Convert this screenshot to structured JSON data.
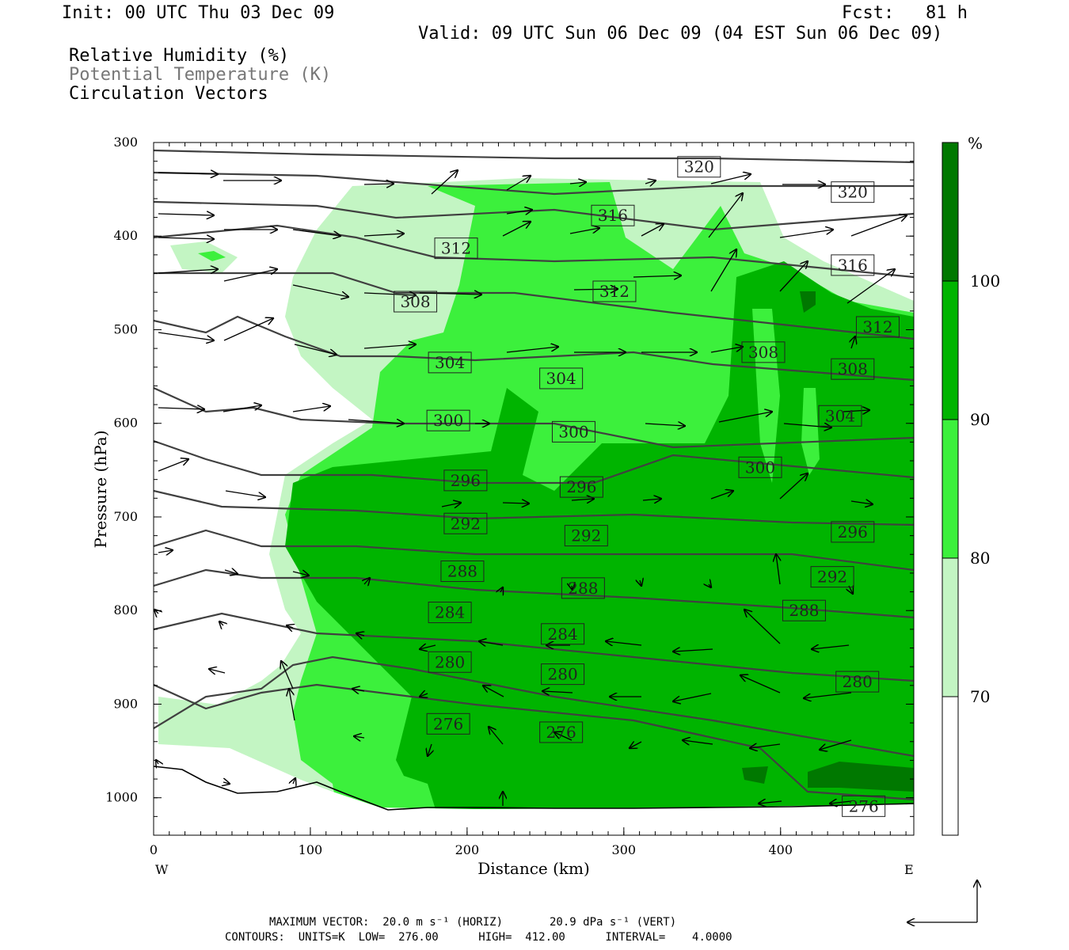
{
  "header": {
    "init": "Init: 00 UTC Thu 03 Dec 09",
    "fcst": "Fcst:   81 h",
    "valid": "Valid: 09 UTC Sun 06 Dec 09 (04 EST Sun 06 Dec 09)",
    "fields": [
      {
        "label": "Relative Humidity (%)",
        "color": "#000000"
      },
      {
        "label": "Potential Temperature (K)",
        "color": "#777777"
      },
      {
        "label": "Circulation Vectors",
        "color": "#000000"
      }
    ]
  },
  "footer": {
    "max_vector_line": "MAXIMUM VECTOR:  20.0 m s⁻¹ (HORIZ)       20.9 dPa s⁻¹ (VERT)",
    "contours_line": "CONTOURS:  UNITS=K  LOW=  276.00      HIGH=  412.00      INTERVAL=    4.0000"
  },
  "colors": {
    "rh_70_80": "#c3f5c3",
    "rh_80_90": "#3cf03c",
    "rh_90_100": "#00b400",
    "rh_100": "#007800",
    "theta_line": "#404040",
    "terrain": "#000000"
  },
  "chart_data": {
    "type": "cross-section",
    "xlabel": "Distance (km)",
    "ylabel": "Pressure (hPa)",
    "xlim": [
      0,
      485
    ],
    "ylim": [
      1040,
      300
    ],
    "x_ticks": [
      0,
      100,
      200,
      300,
      400
    ],
    "y_ticks": [
      300,
      400,
      500,
      600,
      700,
      800,
      900,
      1000
    ],
    "x_end_labels": {
      "west": "W",
      "east": "E"
    },
    "colorbar": {
      "unit": "%",
      "levels": [
        70,
        80,
        90,
        100
      ],
      "labels": [
        "70",
        "80",
        "90",
        "100"
      ]
    },
    "theta_contour_labels": [
      {
        "value": "320",
        "x": 348,
        "p": 326
      },
      {
        "value": "320",
        "x": 446,
        "p": 353
      },
      {
        "value": "316",
        "x": 293,
        "p": 378
      },
      {
        "value": "316",
        "x": 446,
        "p": 431
      },
      {
        "value": "312",
        "x": 193,
        "p": 413
      },
      {
        "value": "312",
        "x": 294,
        "p": 459
      },
      {
        "value": "312",
        "x": 462,
        "p": 497
      },
      {
        "value": "308",
        "x": 167,
        "p": 470
      },
      {
        "value": "308",
        "x": 389,
        "p": 524
      },
      {
        "value": "308",
        "x": 446,
        "p": 542
      },
      {
        "value": "304",
        "x": 189,
        "p": 535
      },
      {
        "value": "304",
        "x": 260,
        "p": 552
      },
      {
        "value": "304",
        "x": 438,
        "p": 592
      },
      {
        "value": "300",
        "x": 188,
        "p": 597
      },
      {
        "value": "300",
        "x": 268,
        "p": 609
      },
      {
        "value": "300",
        "x": 387,
        "p": 647
      },
      {
        "value": "296",
        "x": 199,
        "p": 661
      },
      {
        "value": "296",
        "x": 273,
        "p": 668
      },
      {
        "value": "296",
        "x": 446,
        "p": 716
      },
      {
        "value": "292",
        "x": 199,
        "p": 707
      },
      {
        "value": "292",
        "x": 276,
        "p": 720
      },
      {
        "value": "292",
        "x": 433,
        "p": 764
      },
      {
        "value": "288",
        "x": 197,
        "p": 758
      },
      {
        "value": "288",
        "x": 274,
        "p": 776
      },
      {
        "value": "288",
        "x": 415,
        "p": 800
      },
      {
        "value": "284",
        "x": 189,
        "p": 802
      },
      {
        "value": "284",
        "x": 261,
        "p": 825
      },
      {
        "value": "280",
        "x": 189,
        "p": 855
      },
      {
        "value": "280",
        "x": 261,
        "p": 868
      },
      {
        "value": "280",
        "x": 449,
        "p": 876
      },
      {
        "value": "276",
        "x": 188,
        "p": 921
      },
      {
        "value": "276",
        "x": 260,
        "p": 930
      },
      {
        "value": "276",
        "x": 453,
        "p": 1009
      }
    ]
  }
}
